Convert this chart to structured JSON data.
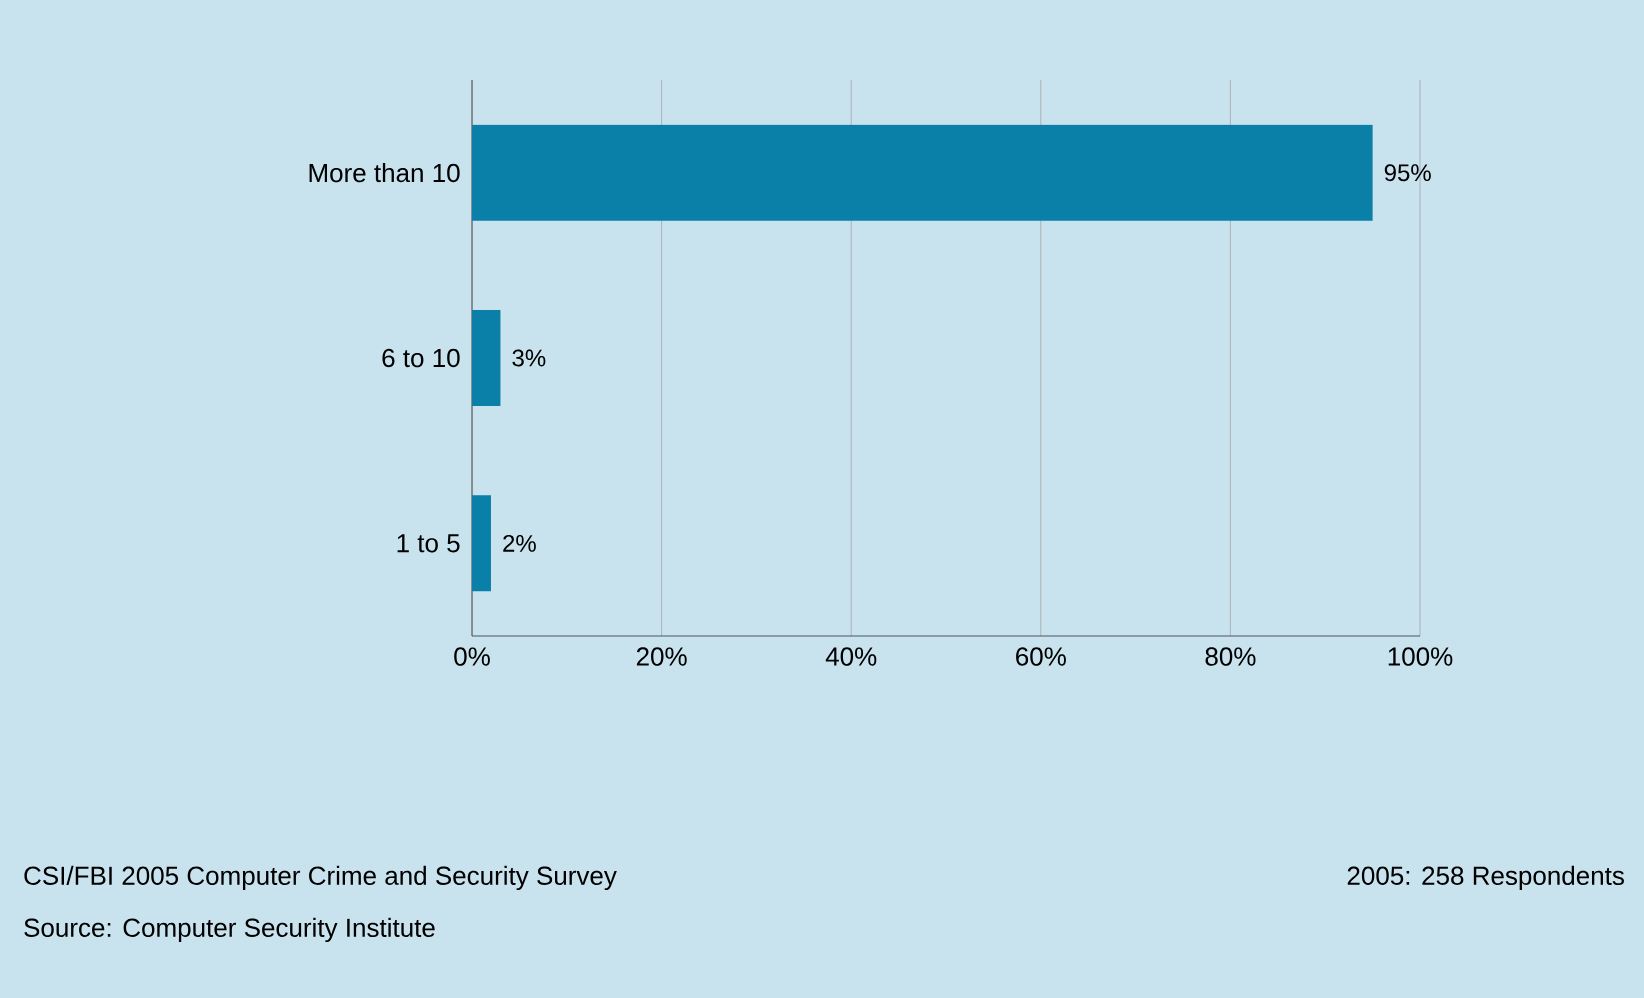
{
  "chart_data": {
    "type": "bar",
    "orientation": "horizontal",
    "categories": [
      "More than 10",
      "6 to 10",
      "1 to 5"
    ],
    "values": [
      95,
      3,
      2
    ],
    "value_labels": [
      "95%",
      "3%",
      "2%"
    ],
    "color": "#0a7fa8",
    "xlim": [
      0,
      100
    ],
    "xticks": [
      {
        "value": 0,
        "label": "0%"
      },
      {
        "value": 20,
        "label": "20%"
      },
      {
        "value": 40,
        "label": "40%"
      },
      {
        "value": 60,
        "label": "60%"
      },
      {
        "value": 80,
        "label": "80%"
      },
      {
        "value": 100,
        "label": "100%"
      }
    ],
    "grid": "x",
    "annotations": [
      "CSI/FBI 2005 Computer Crime and Security Survey",
      "Source: Computer Security Institute",
      "2005: 258 Respondents"
    ]
  }
}
